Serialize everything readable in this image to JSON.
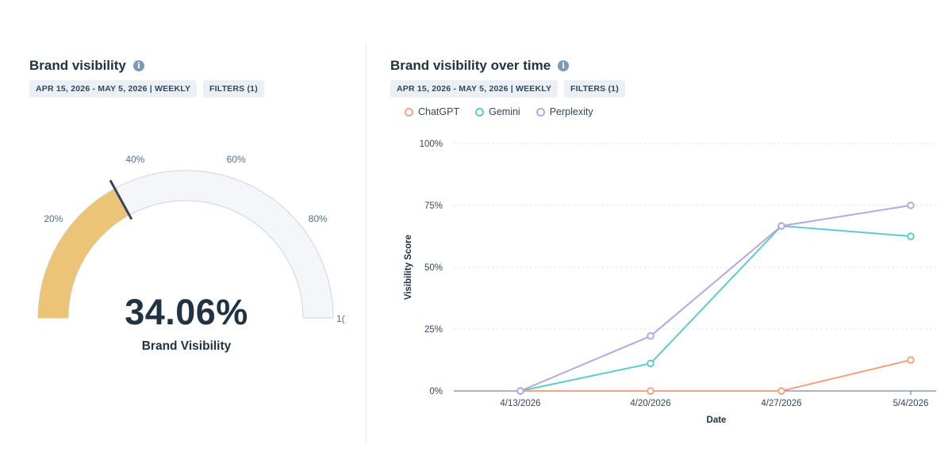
{
  "gauge_card": {
    "title": "Brand visibility",
    "date_range": "APR 15, 2026 - MAY 5, 2026 | WEEKLY",
    "filters": "FILTERS (1)",
    "value": 34.06,
    "value_label": "34.06%",
    "caption": "Brand Visibility",
    "ticks": [
      "20%",
      "40%",
      "60%",
      "80%",
      "1("
    ],
    "colors": {
      "fill": "#ebc477",
      "track": "#f4f6f9",
      "needle": "#33475b"
    }
  },
  "trend_card": {
    "title": "Brand visibility over time",
    "date_range": "APR 15, 2026 - MAY 5, 2026 | WEEKLY",
    "filters": "FILTERS (1)"
  },
  "chart_data": {
    "type": "line",
    "x": [
      "4/13/2026",
      "4/20/2026",
      "4/27/2026",
      "5/4/2026"
    ],
    "xlabel": "Date",
    "ylabel": "Visibility Score",
    "ylim": [
      0,
      100
    ],
    "yticks": [
      "0%",
      "25%",
      "50%",
      "75%",
      "100%"
    ],
    "legend_position": "top-left",
    "grid": true,
    "series": [
      {
        "name": "ChatGPT",
        "color": "#f2a383",
        "values": [
          0,
          0,
          0,
          12.5
        ]
      },
      {
        "name": "Gemini",
        "color": "#5ccad0",
        "values": [
          0,
          11.1,
          66.7,
          62.5
        ]
      },
      {
        "name": "Perplexity",
        "color": "#b9a5e0",
        "values": [
          0,
          22.2,
          66.7,
          75
        ]
      }
    ]
  }
}
